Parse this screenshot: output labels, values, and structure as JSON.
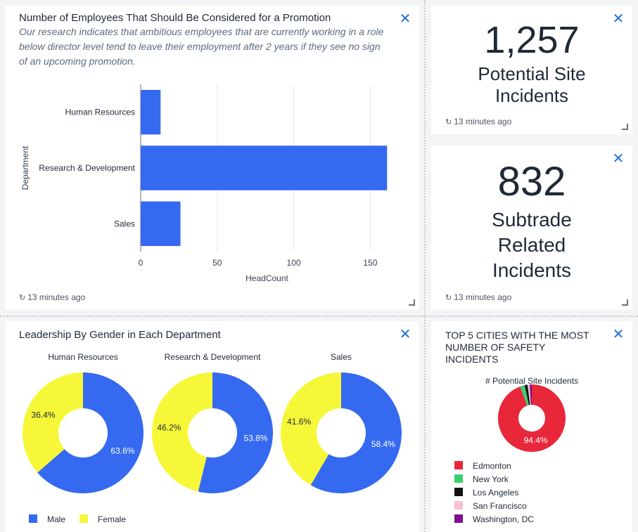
{
  "bar_card": {
    "title": "Number of Employees That Should Be Considered for a Promotion",
    "subtitle": "Our research indicates that ambitious employees that are currently working in a role below director level tend to leave their employment after 2 years if they see no sign of an upcoming promotion.",
    "updated": "13 minutes ago",
    "close_icon": "close-icon"
  },
  "kpi1": {
    "value": "1,257",
    "label_lines": [
      "Potential Site",
      "Incidents"
    ],
    "updated": "13 minutes ago"
  },
  "kpi2": {
    "value": "832",
    "label_lines": [
      "Subtrade",
      "Related",
      "Incidents"
    ],
    "updated": "13 minutes ago"
  },
  "gender_card": {
    "title": "Leadership By Gender in Each Department"
  },
  "cities_card": {
    "title_lines": [
      "TOP 5 CITIES WITH THE MOST",
      "NUMBER OF SAFETY",
      "INCIDENTS"
    ]
  },
  "colors": {
    "bar": "#356af0",
    "male": "#356af0",
    "female": "#f7f73a",
    "close": "#1d6fd6"
  },
  "chart_data": [
    {
      "type": "bar",
      "orientation": "horizontal",
      "categories": [
        "Human Resources",
        "Research & Development",
        "Sales"
      ],
      "values": [
        13,
        161,
        26
      ],
      "xlabel": "HeadCount",
      "ylabel": "Department",
      "xlim": [
        0,
        165
      ],
      "xticks": [
        "0",
        "50",
        "100",
        "150"
      ],
      "grid": true
    },
    {
      "type": "pie",
      "donut": true,
      "panels": [
        {
          "title": "Human Resources",
          "slices": [
            {
              "name": "Male",
              "value": 63.6,
              "label": "63.6%"
            },
            {
              "name": "Female",
              "value": 36.4,
              "label": "36.4%"
            }
          ]
        },
        {
          "title": "Research & Development",
          "slices": [
            {
              "name": "Male",
              "value": 53.8,
              "label": "53.8%"
            },
            {
              "name": "Female",
              "value": 46.2,
              "label": "46.2%"
            }
          ]
        },
        {
          "title": "Sales",
          "slices": [
            {
              "name": "Male",
              "value": 58.4,
              "label": "58.4%"
            },
            {
              "name": "Female",
              "value": 41.6,
              "label": "41.6%"
            }
          ]
        }
      ],
      "legend": [
        {
          "name": "Male",
          "color": "#356af0"
        },
        {
          "name": "Female",
          "color": "#f7f73a"
        }
      ],
      "legend_position": "bottom-left"
    },
    {
      "type": "pie",
      "donut": true,
      "title": "# Potential Site Incidents",
      "slices": [
        {
          "name": "Edmonton",
          "value": 94.4,
          "label": "94.4%",
          "color": "#e8283a"
        },
        {
          "name": "New York",
          "value": 2.2,
          "color": "#3cce6c"
        },
        {
          "name": "Los Angeles",
          "value": 1.4,
          "color": "#111111"
        },
        {
          "name": "San Francisco",
          "value": 1.0,
          "color": "#f8c1cf"
        },
        {
          "name": "Washington, DC",
          "value": 1.0,
          "color": "#7b0f8e"
        }
      ],
      "legend_position": "bottom-left"
    }
  ]
}
